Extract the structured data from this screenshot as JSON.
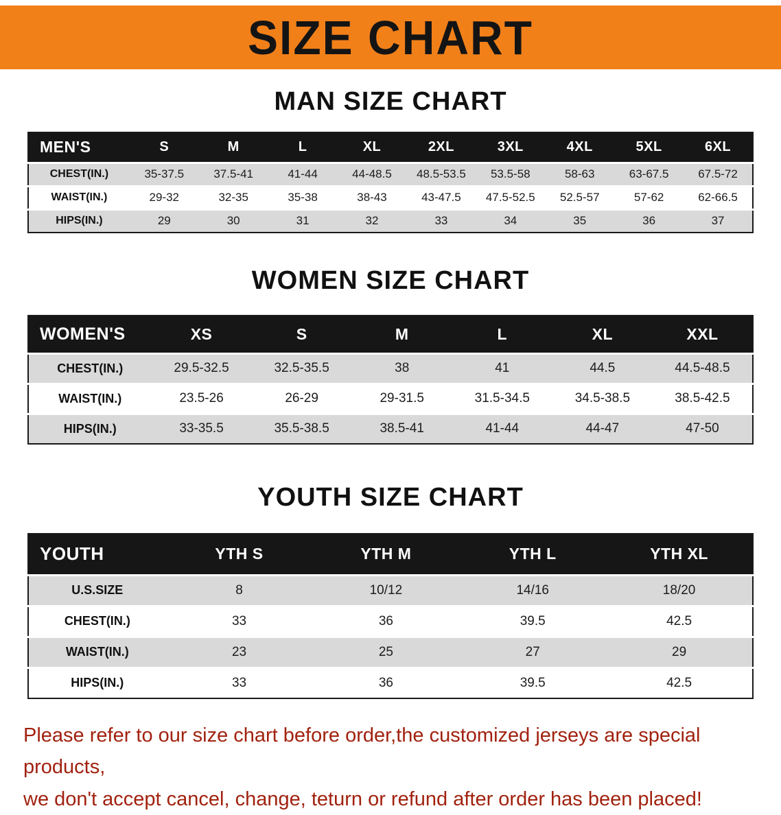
{
  "banner": {
    "title": "SIZE CHART",
    "bg_color": "#f28019"
  },
  "sections": [
    {
      "id": "men",
      "title": "MAN SIZE CHART",
      "header": [
        "MEN'S",
        "S",
        "M",
        "L",
        "XL",
        "2XL",
        "3XL",
        "4XL",
        "5XL",
        "6XL"
      ],
      "rows": [
        {
          "label": "CHEST(IN.)",
          "values": [
            "35-37.5",
            "37.5-41",
            "41-44",
            "44-48.5",
            "48.5-53.5",
            "53.5-58",
            "58-63",
            "63-67.5",
            "67.5-72"
          ]
        },
        {
          "label": "WAIST(IN.)",
          "values": [
            "29-32",
            "32-35",
            "35-38",
            "38-43",
            "43-47.5",
            "47.5-52.5",
            "52.5-57",
            "57-62",
            "62-66.5"
          ]
        },
        {
          "label": "HIPS(IN.)",
          "values": [
            "29",
            "30",
            "31",
            "32",
            "33",
            "34",
            "35",
            "36",
            "37"
          ]
        }
      ]
    },
    {
      "id": "women",
      "title": "WOMEN SIZE CHART",
      "header": [
        "WOMEN'S",
        "XS",
        "S",
        "M",
        "L",
        "XL",
        "XXL"
      ],
      "rows": [
        {
          "label": "CHEST(IN.)",
          "values": [
            "29.5-32.5",
            "32.5-35.5",
            "38",
            "41",
            "44.5",
            "44.5-48.5"
          ]
        },
        {
          "label": "WAIST(IN.)",
          "values": [
            "23.5-26",
            "26-29",
            "29-31.5",
            "31.5-34.5",
            "34.5-38.5",
            "38.5-42.5"
          ]
        },
        {
          "label": "HIPS(IN.)",
          "values": [
            "33-35.5",
            "35.5-38.5",
            "38.5-41",
            "41-44",
            "44-47",
            "47-50"
          ]
        }
      ]
    },
    {
      "id": "youth",
      "title": "YOUTH SIZE CHART",
      "header": [
        "YOUTH",
        "YTH S",
        "YTH M",
        "YTH L",
        "YTH XL"
      ],
      "rows": [
        {
          "label": "U.S.SIZE",
          "values": [
            "8",
            "10/12",
            "14/16",
            "18/20"
          ]
        },
        {
          "label": "CHEST(IN.)",
          "values": [
            "33",
            "36",
            "39.5",
            "42.5"
          ]
        },
        {
          "label": "WAIST(IN.)",
          "values": [
            "23",
            "25",
            "27",
            "29"
          ]
        },
        {
          "label": "HIPS(IN.)",
          "values": [
            "33",
            "36",
            "39.5",
            "42.5"
          ]
        }
      ]
    }
  ],
  "disclaimer": {
    "color": "#a1220f",
    "lines": [
      "Please refer to our size chart before order,the customized jerseys are special products,",
      "we don't accept cancel, change, teturn or refund after order has been placed!"
    ]
  }
}
